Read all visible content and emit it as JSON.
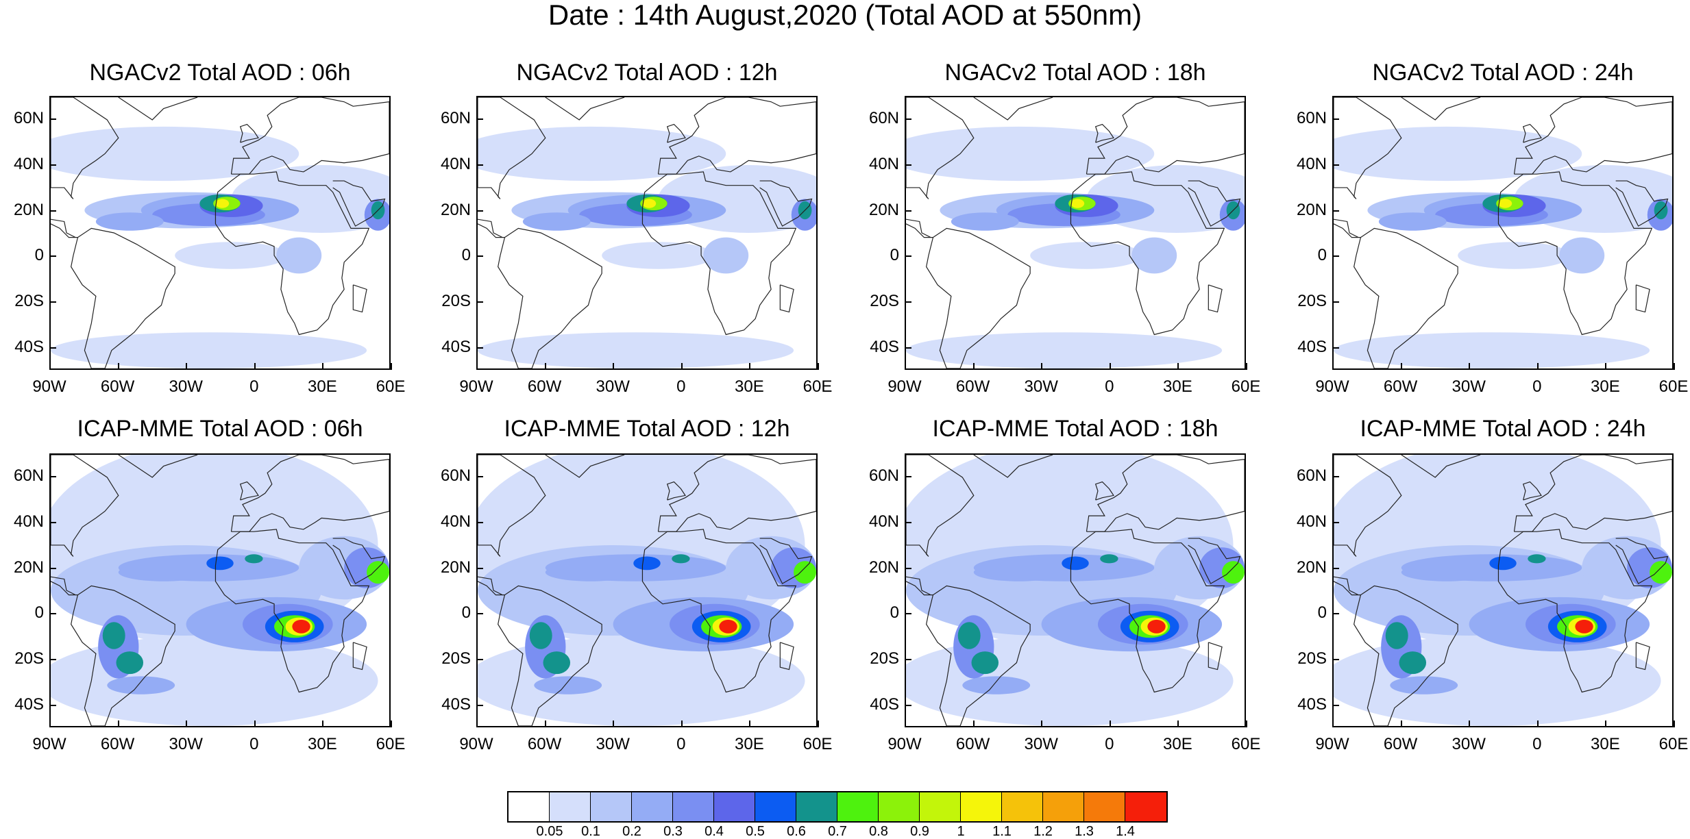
{
  "figure": {
    "title": "Date : 14th August,2020 (Total AOD at 550nm)"
  },
  "panels": [
    {
      "title": "NGACv2 Total AOD : 06h",
      "model": "NGACv2",
      "lead": "06h"
    },
    {
      "title": "NGACv2 Total AOD : 12h",
      "model": "NGACv2",
      "lead": "12h"
    },
    {
      "title": "NGACv2 Total AOD : 18h",
      "model": "NGACv2",
      "lead": "18h"
    },
    {
      "title": "NGACv2 Total AOD : 24h",
      "model": "NGACv2",
      "lead": "24h"
    },
    {
      "title": "ICAP-MME Total AOD : 06h",
      "model": "ICAP-MME",
      "lead": "06h"
    },
    {
      "title": "ICAP-MME Total AOD : 12h",
      "model": "ICAP-MME",
      "lead": "12h"
    },
    {
      "title": "ICAP-MME Total AOD : 18h",
      "model": "ICAP-MME",
      "lead": "18h"
    },
    {
      "title": "ICAP-MME Total AOD : 24h",
      "model": "ICAP-MME",
      "lead": "24h"
    }
  ],
  "axes": {
    "lat_labels": [
      "60N",
      "40N",
      "20N",
      "0",
      "20S",
      "40S"
    ],
    "lon_labels": [
      "90W",
      "60W",
      "30W",
      "0",
      "30E",
      "60E"
    ]
  },
  "colorbar": {
    "colors": [
      "#ffffff",
      "#d5dffb",
      "#b5c7f8",
      "#94acf5",
      "#7a8ff2",
      "#5d66ea",
      "#0c5cf2",
      "#13938c",
      "#4ef20e",
      "#8cf20a",
      "#c3f50a",
      "#f5f50a",
      "#f5c20a",
      "#f5a00a",
      "#f57a0a",
      "#f51f0a"
    ],
    "labels": [
      "0.05",
      "0.1",
      "0.2",
      "0.3",
      "0.4",
      "0.5",
      "0.6",
      "0.7",
      "0.8",
      "0.9",
      "1",
      "1.1",
      "1.2",
      "1.3",
      "1.4"
    ]
  }
}
